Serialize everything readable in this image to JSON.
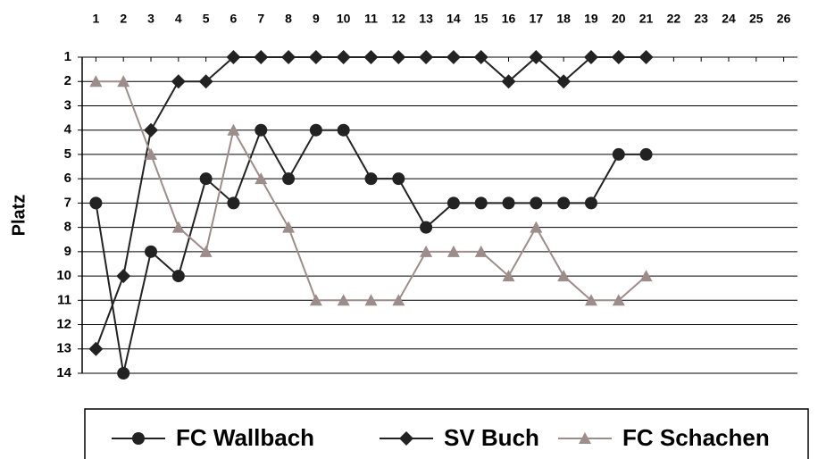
{
  "chart_data": {
    "type": "line",
    "y_axis_label": "Platz",
    "x": [
      1,
      2,
      3,
      4,
      5,
      6,
      7,
      8,
      9,
      10,
      11,
      12,
      13,
      14,
      15,
      16,
      17,
      18,
      19,
      20,
      21
    ],
    "xlim": [
      0.5,
      26.5
    ],
    "xticks": [
      1,
      2,
      3,
      4,
      5,
      6,
      7,
      8,
      9,
      10,
      11,
      12,
      13,
      14,
      15,
      16,
      17,
      18,
      19,
      20,
      21,
      22,
      23,
      24,
      25,
      26
    ],
    "ylim": [
      1,
      14
    ],
    "yticks": [
      1,
      2,
      3,
      4,
      5,
      6,
      7,
      8,
      9,
      10,
      11,
      12,
      13,
      14
    ],
    "y_inverted": true,
    "grid": true,
    "legend": "bottom",
    "series": [
      {
        "name": "FC Wallbach",
        "color": "#222222",
        "marker": "circle",
        "values": [
          7,
          14,
          9,
          10,
          6,
          7,
          4,
          6,
          4,
          4,
          6,
          6,
          8,
          7,
          7,
          7,
          7,
          7,
          7,
          5,
          5
        ]
      },
      {
        "name": "SV Buch",
        "color": "#222222",
        "marker": "diamond",
        "values": [
          13,
          10,
          4,
          2,
          2,
          1,
          1,
          1,
          1,
          1,
          1,
          1,
          1,
          1,
          1,
          2,
          1,
          2,
          1,
          1,
          1
        ]
      },
      {
        "name": "FC Schachen",
        "color": "#9c8c8a",
        "marker": "triangle",
        "values": [
          2,
          2,
          5,
          8,
          9,
          4,
          6,
          8,
          11,
          11,
          11,
          11,
          9,
          9,
          9,
          10,
          8,
          10,
          11,
          11,
          10
        ]
      }
    ]
  }
}
